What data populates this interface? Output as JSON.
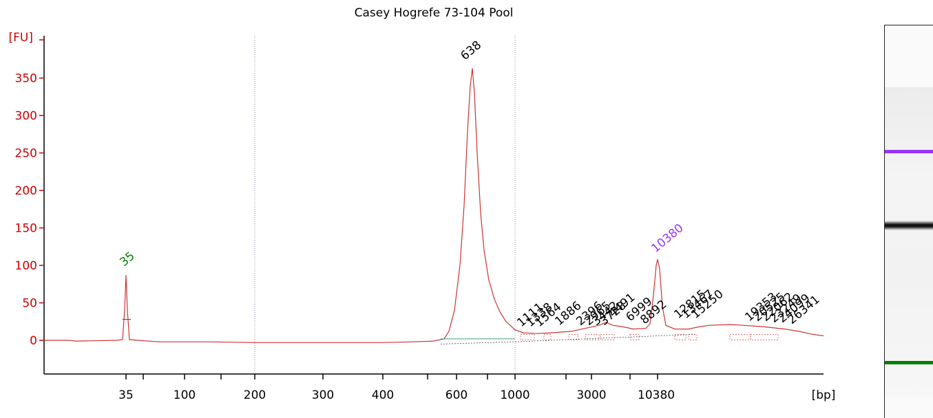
{
  "chart_data": {
    "type": "line",
    "title": "Casey Hogrefe 73-104 Pool",
    "ylabel": "[FU]",
    "xlabel": "[bp]",
    "ylim": [
      0,
      350
    ],
    "yticks": [
      "0",
      "50",
      "100",
      "150",
      "200",
      "250",
      "300",
      "350"
    ],
    "xticks": [
      "35",
      "100",
      "200",
      "300",
      "400",
      "600",
      "1000",
      "3000",
      "10380"
    ],
    "series": [
      {
        "name": "",
        "color": "#cc3333",
        "points": [
          [
            "start",
            0
          ],
          [
            "35",
            0
          ],
          [
            "35 peak",
            87
          ],
          [
            "35",
            0
          ],
          [
            "100",
            -2
          ],
          [
            "200",
            -3
          ],
          [
            "300",
            -3
          ],
          [
            "400",
            -3
          ],
          [
            "~550",
            0
          ],
          [
            "600",
            120
          ],
          [
            "638",
            363
          ],
          [
            "700",
            120
          ],
          [
            "800",
            40
          ],
          [
            "1000",
            10
          ],
          [
            "1111",
            8
          ],
          [
            "1886",
            10
          ],
          [
            "2965",
            15
          ],
          [
            "4491",
            20
          ],
          [
            "6999",
            15
          ],
          [
            "8892",
            18
          ],
          [
            "10380",
            108
          ],
          [
            "12815",
            15
          ],
          [
            "15250",
            20
          ],
          [
            "19353",
            20
          ],
          [
            "23249",
            15
          ],
          [
            "26341",
            10
          ],
          [
            "end",
            6
          ]
        ]
      }
    ],
    "peak_labels": [
      {
        "text": "35",
        "color": "#008000"
      },
      {
        "text": "638",
        "color": "#000000"
      },
      {
        "text": "10380",
        "color": "#9933ff"
      },
      {
        "text": "1111",
        "color": "#000000"
      },
      {
        "text": "1338",
        "color": "#000000"
      },
      {
        "text": "1564",
        "color": "#000000"
      },
      {
        "text": "1886",
        "color": "#000000"
      },
      {
        "text": "2396",
        "color": "#000000"
      },
      {
        "text": "2965",
        "color": "#000000"
      },
      {
        "text": "3442",
        "color": "#000000"
      },
      {
        "text": "3728",
        "color": "#000000"
      },
      {
        "text": "4491",
        "color": "#000000"
      },
      {
        "text": "6999",
        "color": "#000000"
      },
      {
        "text": "8892",
        "color": "#000000"
      },
      {
        "text": "12815",
        "color": "#000000"
      },
      {
        "text": "13467",
        "color": "#000000"
      },
      {
        "text": "15250",
        "color": "#000000"
      },
      {
        "text": "19353",
        "color": "#000000"
      },
      {
        "text": "20525",
        "color": "#000000"
      },
      {
        "text": "22062",
        "color": "#000000"
      },
      {
        "text": "23249",
        "color": "#000000"
      },
      {
        "text": "24099",
        "color": "#000000"
      },
      {
        "text": "26341",
        "color": "#000000"
      }
    ],
    "gel_bands": [
      {
        "name": "upper-marker",
        "color": "#9933ff"
      },
      {
        "name": "main-band",
        "color": "#111111"
      },
      {
        "name": "lower-marker",
        "color": "#008000"
      }
    ]
  }
}
